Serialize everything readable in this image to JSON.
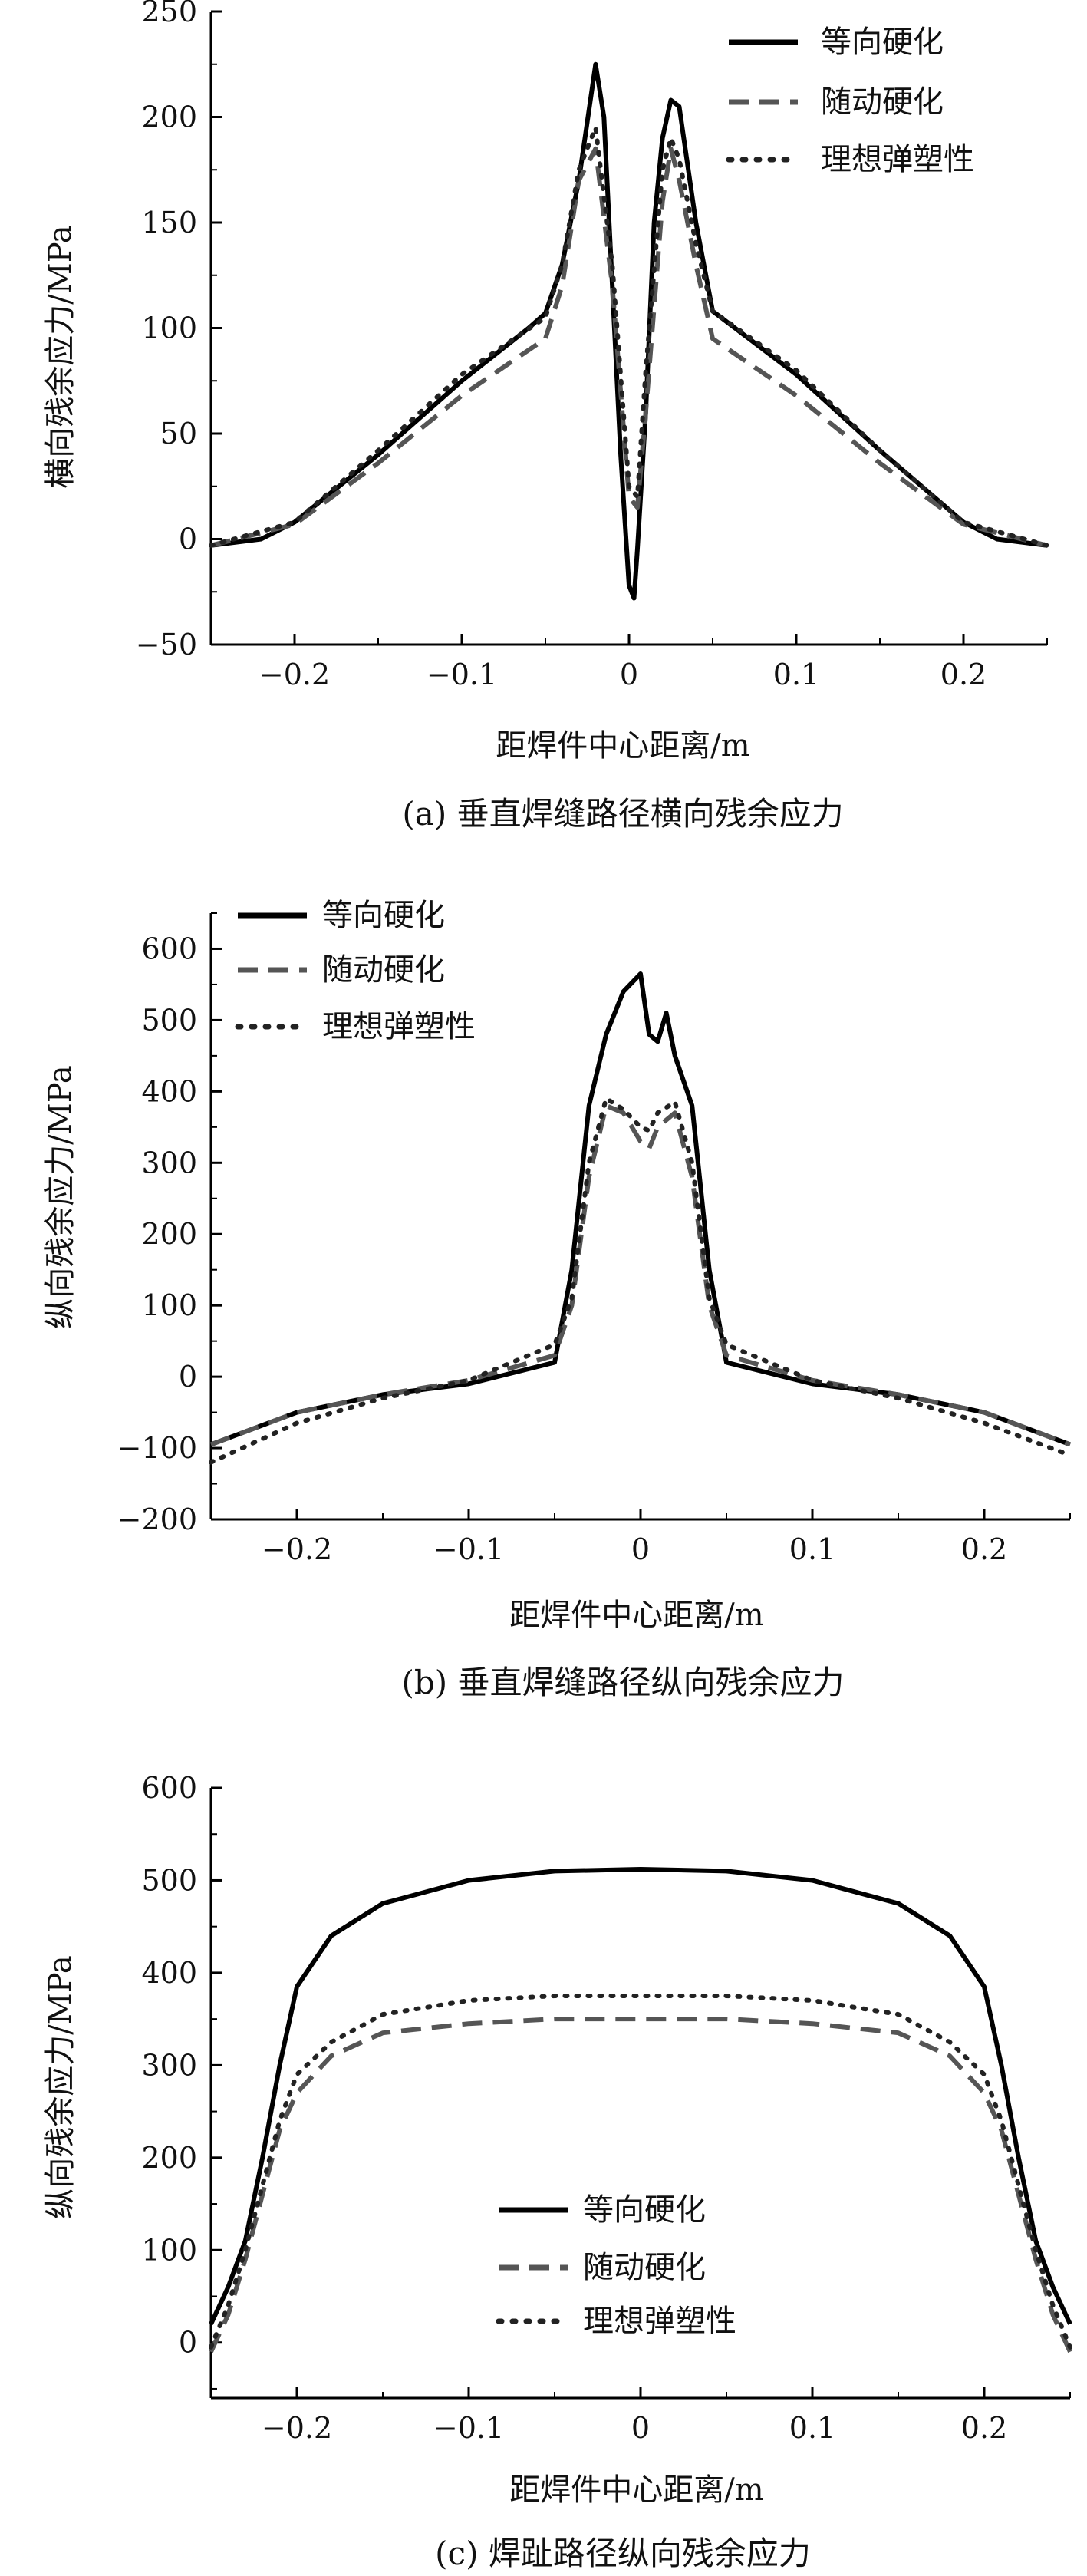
{
  "legend_labels": [
    "等向硬化",
    "随动硬化",
    "理想弹塑性"
  ],
  "colors": {
    "isotropic": "#000000",
    "kinematic": "#555555",
    "ideal": "#222222"
  },
  "chart_data": [
    {
      "type": "line",
      "caption": "(a) 垂直焊缝路径横向残余应力",
      "xlabel": "距焊件中心距离/m",
      "ylabel": "横向残余应力/MPa",
      "xlim": [
        -0.25,
        0.25
      ],
      "ylim": [
        -50,
        250
      ],
      "xticks": [
        -0.2,
        -0.1,
        0,
        0.1,
        0.2
      ],
      "xtick_labels": [
        "−0.2",
        "−0.1",
        "0",
        "0.1",
        "0.2"
      ],
      "yticks": [
        -50,
        0,
        50,
        100,
        150,
        200,
        250
      ],
      "ytick_labels": [
        "−50",
        "0",
        "50",
        "100",
        "150",
        "200",
        "250"
      ],
      "legend_position": "top-right",
      "series": [
        {
          "name": "等向硬化",
          "style": "solid",
          "x": [
            -0.25,
            -0.22,
            -0.2,
            -0.15,
            -0.1,
            -0.06,
            -0.05,
            -0.04,
            -0.03,
            -0.02,
            -0.015,
            -0.01,
            -0.005,
            0,
            0.003,
            0.005,
            0.01,
            0.015,
            0.02,
            0.025,
            0.03,
            0.04,
            0.05,
            0.055,
            0.1,
            0.15,
            0.2,
            0.22,
            0.25
          ],
          "y": [
            -3,
            0,
            8,
            40,
            75,
            100,
            107,
            130,
            170,
            225,
            200,
            120,
            40,
            -22,
            -28,
            -5,
            60,
            150,
            190,
            208,
            205,
            150,
            108,
            105,
            78,
            42,
            8,
            0,
            -3
          ]
        },
        {
          "name": "随动硬化",
          "style": "dashed",
          "x": [
            -0.25,
            -0.2,
            -0.15,
            -0.1,
            -0.05,
            -0.04,
            -0.03,
            -0.02,
            -0.01,
            0,
            0.005,
            0.01,
            0.02,
            0.025,
            0.03,
            0.04,
            0.05,
            0.1,
            0.15,
            0.2,
            0.25
          ],
          "y": [
            -3,
            7,
            36,
            68,
            95,
            120,
            170,
            185,
            120,
            20,
            15,
            60,
            160,
            185,
            170,
            130,
            95,
            68,
            36,
            7,
            -3
          ]
        },
        {
          "name": "理想弹塑性",
          "style": "dotted",
          "x": [
            -0.25,
            -0.2,
            -0.15,
            -0.1,
            -0.05,
            -0.04,
            -0.03,
            -0.02,
            -0.01,
            0,
            0.005,
            0.01,
            0.02,
            0.025,
            0.03,
            0.04,
            0.05,
            0.1,
            0.15,
            0.2,
            0.25
          ],
          "y": [
            -3,
            8,
            42,
            78,
            105,
            130,
            175,
            195,
            130,
            25,
            20,
            80,
            175,
            190,
            180,
            140,
            108,
            80,
            42,
            8,
            -3
          ]
        }
      ]
    },
    {
      "type": "line",
      "caption": "(b) 垂直焊缝路径纵向残余应力",
      "xlabel": "距焊件中心距离/m",
      "ylabel": "纵向残余应力/MPa",
      "xlim": [
        -0.25,
        0.25
      ],
      "ylim": [
        -200,
        650
      ],
      "xticks": [
        -0.2,
        -0.1,
        0,
        0.1,
        0.2
      ],
      "xtick_labels": [
        "−0.2",
        "−0.1",
        "0",
        "0.1",
        "0.2"
      ],
      "yticks": [
        -200,
        -100,
        0,
        100,
        200,
        300,
        400,
        500,
        600
      ],
      "ytick_labels": [
        "−200",
        "−100",
        "0",
        "100",
        "200",
        "300",
        "400",
        "500",
        "600"
      ],
      "legend_position": "top-left",
      "series": [
        {
          "name": "等向硬化",
          "style": "solid",
          "x": [
            -0.25,
            -0.2,
            -0.15,
            -0.1,
            -0.05,
            -0.04,
            -0.03,
            -0.02,
            -0.01,
            0,
            0.005,
            0.01,
            0.015,
            0.02,
            0.03,
            0.04,
            0.05,
            0.1,
            0.15,
            0.2,
            0.25
          ],
          "y": [
            -95,
            -50,
            -25,
            -10,
            20,
            150,
            380,
            480,
            540,
            565,
            480,
            470,
            510,
            450,
            380,
            150,
            20,
            -10,
            -25,
            -50,
            -95
          ]
        },
        {
          "name": "随动硬化",
          "style": "dashed",
          "x": [
            -0.25,
            -0.2,
            -0.15,
            -0.1,
            -0.05,
            -0.04,
            -0.03,
            -0.02,
            -0.01,
            0,
            0.005,
            0.01,
            0.02,
            0.03,
            0.04,
            0.05,
            0.1,
            0.15,
            0.2,
            0.25
          ],
          "y": [
            -95,
            -50,
            -25,
            -5,
            30,
            100,
            280,
            380,
            370,
            330,
            320,
            350,
            370,
            280,
            100,
            30,
            -5,
            -25,
            -50,
            -95
          ]
        },
        {
          "name": "理想弹塑性",
          "style": "dotted",
          "x": [
            -0.25,
            -0.2,
            -0.15,
            -0.1,
            -0.05,
            -0.04,
            -0.03,
            -0.02,
            -0.01,
            0,
            0.005,
            0.01,
            0.02,
            0.03,
            0.04,
            0.05,
            0.1,
            0.15,
            0.2,
            0.25
          ],
          "y": [
            -120,
            -65,
            -30,
            -5,
            45,
            110,
            300,
            390,
            375,
            350,
            345,
            370,
            385,
            300,
            110,
            45,
            -5,
            -30,
            -65,
            -110
          ]
        }
      ]
    },
    {
      "type": "line",
      "caption": "(c) 焊趾路径纵向残余应力",
      "xlabel": "距焊件中心距离/m",
      "ylabel": "纵向残余应力/MPa",
      "xlim": [
        -0.25,
        0.25
      ],
      "ylim": [
        -60,
        600
      ],
      "xticks": [
        -0.2,
        -0.1,
        0,
        0.1,
        0.2
      ],
      "xtick_labels": [
        "−0.2",
        "−0.1",
        "0",
        "0.1",
        "0.2"
      ],
      "yticks": [
        0,
        100,
        200,
        300,
        400,
        500,
        600
      ],
      "ytick_labels": [
        "0",
        "100",
        "200",
        "300",
        "400",
        "500",
        "600"
      ],
      "legend_position": "bottom-center",
      "series": [
        {
          "name": "等向硬化",
          "style": "solid",
          "x": [
            -0.25,
            -0.24,
            -0.23,
            -0.22,
            -0.21,
            -0.2,
            -0.18,
            -0.15,
            -0.1,
            -0.05,
            0,
            0.05,
            0.1,
            0.15,
            0.18,
            0.2,
            0.21,
            0.22,
            0.23,
            0.24,
            0.25
          ],
          "y": [
            20,
            60,
            110,
            200,
            300,
            385,
            440,
            475,
            500,
            510,
            512,
            510,
            500,
            475,
            440,
            385,
            300,
            200,
            110,
            60,
            20
          ]
        },
        {
          "name": "随动硬化",
          "style": "dashed",
          "x": [
            -0.25,
            -0.24,
            -0.23,
            -0.22,
            -0.21,
            -0.2,
            -0.18,
            -0.15,
            -0.1,
            -0.05,
            0,
            0.05,
            0.1,
            0.15,
            0.18,
            0.2,
            0.21,
            0.22,
            0.23,
            0.24,
            0.25
          ],
          "y": [
            -10,
            30,
            90,
            160,
            230,
            270,
            310,
            335,
            345,
            350,
            350,
            350,
            345,
            335,
            310,
            270,
            230,
            160,
            90,
            30,
            -10
          ]
        },
        {
          "name": "理想弹塑性",
          "style": "dotted",
          "x": [
            -0.25,
            -0.24,
            -0.23,
            -0.22,
            -0.21,
            -0.2,
            -0.18,
            -0.15,
            -0.1,
            -0.05,
            0,
            0.05,
            0.1,
            0.15,
            0.18,
            0.2,
            0.21,
            0.22,
            0.23,
            0.24,
            0.25
          ],
          "y": [
            -5,
            40,
            100,
            170,
            240,
            290,
            325,
            355,
            370,
            375,
            375,
            375,
            370,
            355,
            325,
            290,
            240,
            170,
            100,
            40,
            -5
          ]
        }
      ]
    }
  ]
}
